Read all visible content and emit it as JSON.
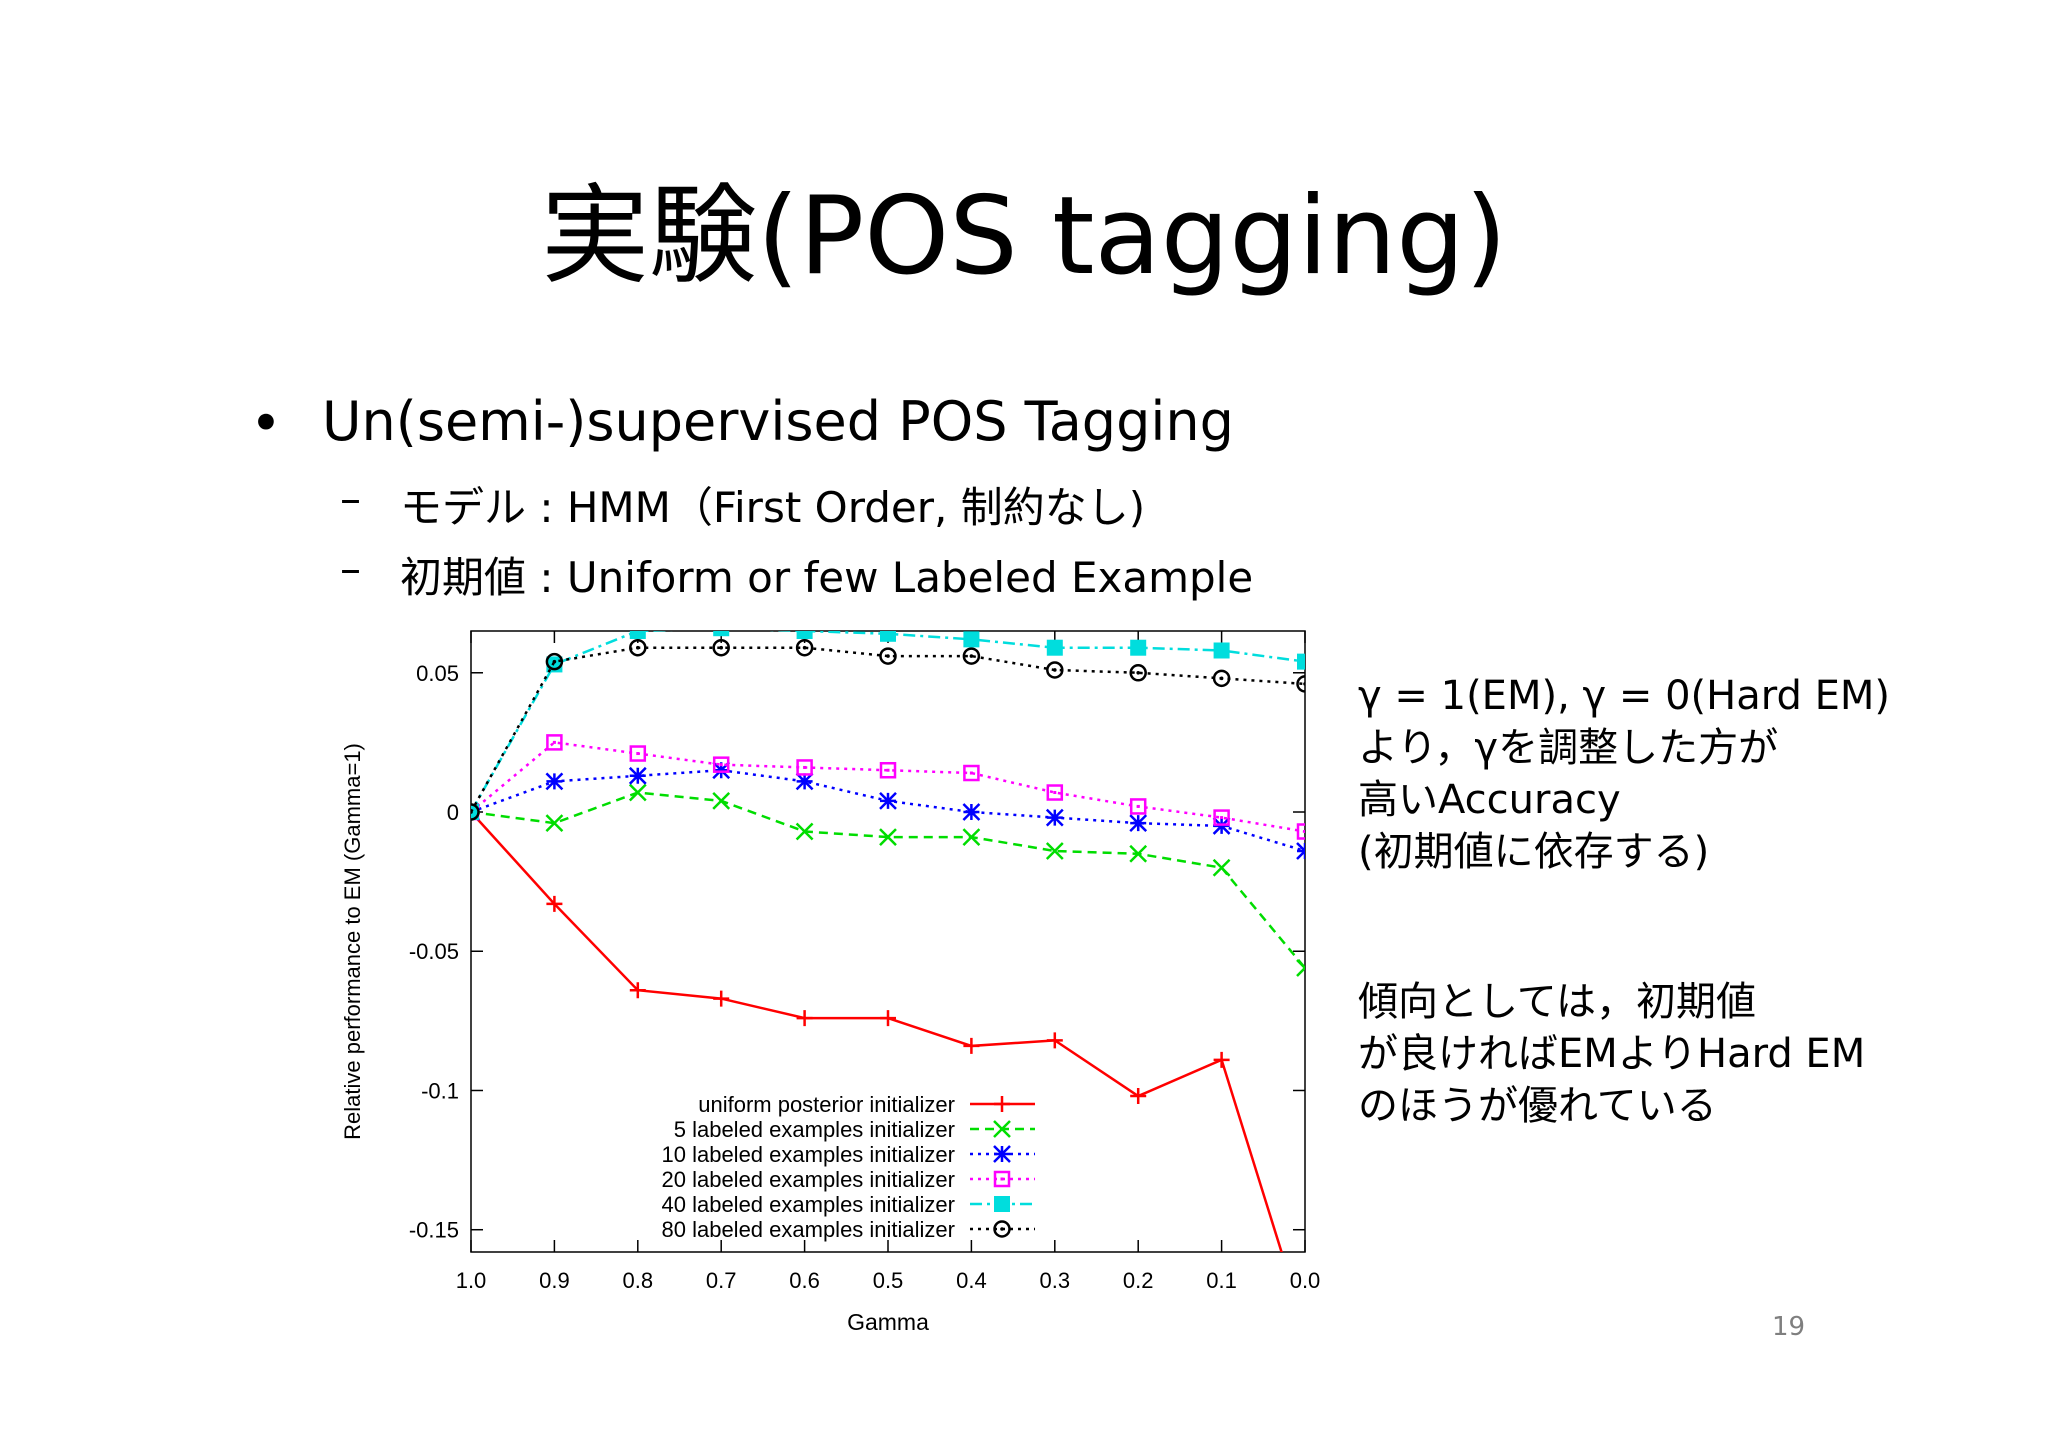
{
  "slide": {
    "title": "実験(POS tagging)",
    "bullet1": "Un(semi-)supervised POS Tagging",
    "bullet1_marker": "•",
    "sub_marker": "–",
    "sub1": "モデル : HMM（First Order, 制約なし)",
    "sub2": "初期値 : Uniform or few Labeled Example",
    "note1": [
      "γ = 1(EM), γ = 0(Hard EM)",
      "より，γを調整した方が",
      "高いAccuracy",
      "(初期値に依存する)"
    ],
    "note2": [
      "傾向としては，初期値",
      "が良ければEMよりHard EM",
      "のほうが優れている"
    ],
    "page_number": "19"
  },
  "chart_data": {
    "type": "line",
    "xlabel": "Gamma",
    "ylabel": "Relative performance to EM (Gamma=1)",
    "x": [
      "1.0",
      "0.9",
      "0.8",
      "0.7",
      "0.6",
      "0.5",
      "0.4",
      "0.3",
      "0.2",
      "0.1",
      "0.0"
    ],
    "y_ticks": [
      "0.05",
      "0",
      "-0.05",
      "-0.1",
      "-0.15"
    ],
    "ylim": [
      -0.158,
      0.065
    ],
    "legend_position": "bottom-center",
    "series": [
      {
        "name": "uniform posterior initializer",
        "color": "#ff0000",
        "marker": "plus",
        "dash": "solid",
        "values": [
          0,
          -0.033,
          -0.064,
          -0.067,
          -0.074,
          -0.074,
          -0.084,
          -0.082,
          -0.102,
          -0.089,
          -0.185
        ]
      },
      {
        "name": "5 labeled examples initializer",
        "color": "#00dd00",
        "marker": "x",
        "dash": "dashed",
        "values": [
          0,
          -0.004,
          0.007,
          0.004,
          -0.007,
          -0.009,
          -0.009,
          -0.014,
          -0.015,
          -0.02,
          -0.056
        ]
      },
      {
        "name": "10 labeled examples initializer",
        "color": "#0000ff",
        "marker": "star",
        "dash": "dotted",
        "values": [
          0,
          0.011,
          0.013,
          0.015,
          0.011,
          0.004,
          0,
          -0.002,
          -0.004,
          -0.005,
          -0.014
        ]
      },
      {
        "name": "20 labeled examples initializer",
        "color": "#ff00ff",
        "marker": "square-open",
        "dash": "dotted",
        "values": [
          0,
          0.025,
          0.021,
          0.017,
          0.016,
          0.015,
          0.014,
          0.007,
          0.002,
          -0.002,
          -0.007
        ]
      },
      {
        "name": "40 labeled examples initializer",
        "color": "#00dddd",
        "marker": "square-filled",
        "dash": "dashdot",
        "values": [
          0,
          0.053,
          0.065,
          0.066,
          0.065,
          0.064,
          0.062,
          0.059,
          0.059,
          0.058,
          0.054
        ]
      },
      {
        "name": "80 labeled examples initializer",
        "color": "#000000",
        "marker": "circle-open",
        "dash": "dotted",
        "values": [
          0,
          0.054,
          0.059,
          0.059,
          0.059,
          0.056,
          0.056,
          0.051,
          0.05,
          0.048,
          0.046
        ]
      }
    ]
  }
}
